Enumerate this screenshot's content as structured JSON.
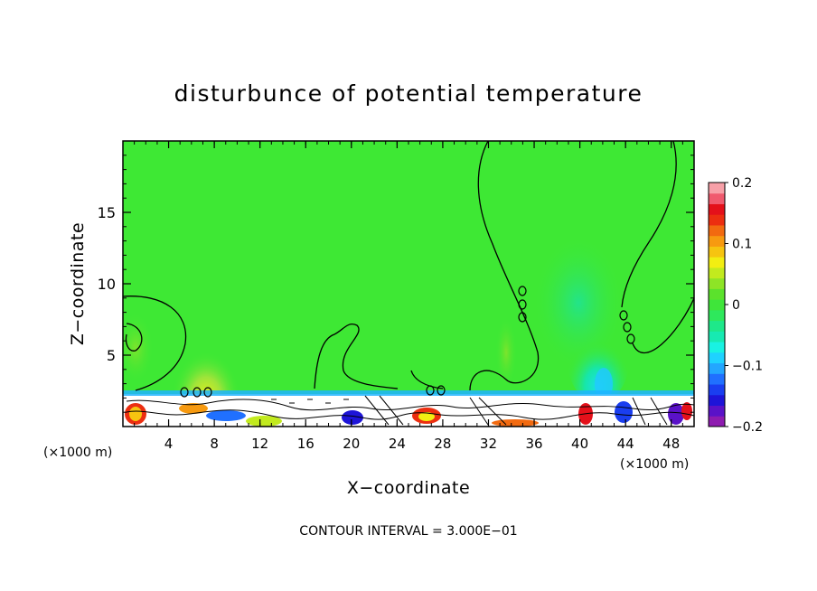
{
  "chart_data": {
    "type": "heatmap",
    "title": "disturbunce of potential temperature",
    "xlabel": "X−coordinate",
    "ylabel": "Z−coordinate",
    "x_unit_left": "(×1000 m)",
    "x_unit_right": "(×1000 m)",
    "xlim": [
      0,
      50
    ],
    "ylim": [
      0,
      20
    ],
    "x_ticks": [
      "4",
      "8",
      "12",
      "16",
      "20",
      "24",
      "28",
      "32",
      "36",
      "40",
      "44",
      "48"
    ],
    "y_ticks": [
      "5",
      "10",
      "15"
    ],
    "colorbar": {
      "range": [
        -0.2,
        0.2
      ],
      "tick_labels": [
        "0.2",
        "0.1",
        "0",
        "−0.1",
        "−0.2"
      ],
      "colors": [
        "#8e1bb0",
        "#5a12c8",
        "#1e14d8",
        "#1a3ef0",
        "#2070ff",
        "#23a6ff",
        "#1fd2ff",
        "#19f2e2",
        "#17eab2",
        "#1ee88a",
        "#2ee85c",
        "#3fe53a",
        "#5be22c",
        "#8ee426",
        "#c2ea1e",
        "#f2ee12",
        "#f6c410",
        "#f79a10",
        "#f26a10",
        "#ec2e10",
        "#e4101a",
        "#f05a6e",
        "#f7a0a8"
      ]
    },
    "contour_labels": [
      "0.00",
      "0.00",
      "0.00",
      "0.00",
      "0.00"
    ],
    "footer": "CONTOUR INTERVAL = 3.000E−01",
    "grid": false
  }
}
